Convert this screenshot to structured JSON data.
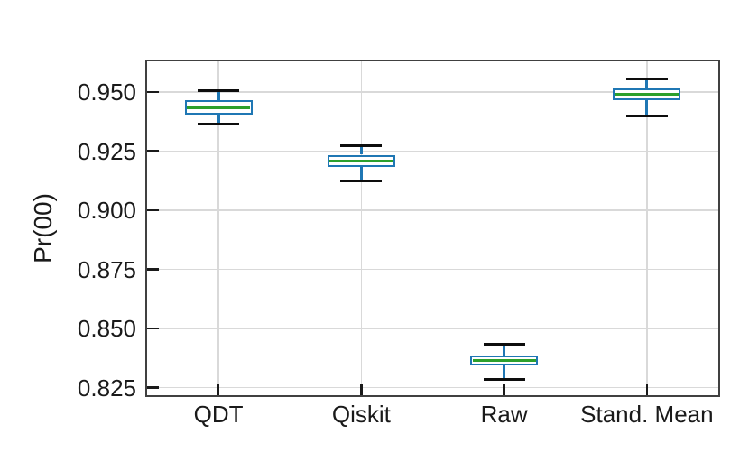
{
  "colors": {
    "background": "#ffffff",
    "box_edge": "#1f77b4",
    "whisker": "#1f77b4",
    "cap": "#0d0d0d",
    "median": "#2ca02c",
    "grid": "#d9d9d9",
    "spine": "#404040",
    "text": "#1a1a1a"
  },
  "chart_data": {
    "type": "boxplot",
    "title": "",
    "xlabel": "",
    "ylabel": "Pr(00)",
    "grid": true,
    "legend": false,
    "ylim": [
      0.8218,
      0.963
    ],
    "ytick_labels": [
      "0.950",
      "0.925",
      "0.900",
      "0.875",
      "0.850",
      "0.825"
    ],
    "categories": [
      "QDT",
      "Qiskit",
      "Raw",
      "Stand. Mean"
    ],
    "series": [
      {
        "name": "QDT",
        "whisker_low": 0.9365,
        "q1": 0.9405,
        "median": 0.9435,
        "q3": 0.9465,
        "whisker_high": 0.9505
      },
      {
        "name": "Qiskit",
        "whisker_low": 0.9125,
        "q1": 0.9185,
        "median": 0.921,
        "q3": 0.9235,
        "whisker_high": 0.9275
      },
      {
        "name": "Raw",
        "whisker_low": 0.8285,
        "q1": 0.8345,
        "median": 0.8365,
        "q3": 0.8385,
        "whisker_high": 0.8435
      },
      {
        "name": "Stand. Mean",
        "whisker_low": 0.94,
        "q1": 0.9465,
        "median": 0.949,
        "q3": 0.9515,
        "whisker_high": 0.9555
      }
    ]
  }
}
